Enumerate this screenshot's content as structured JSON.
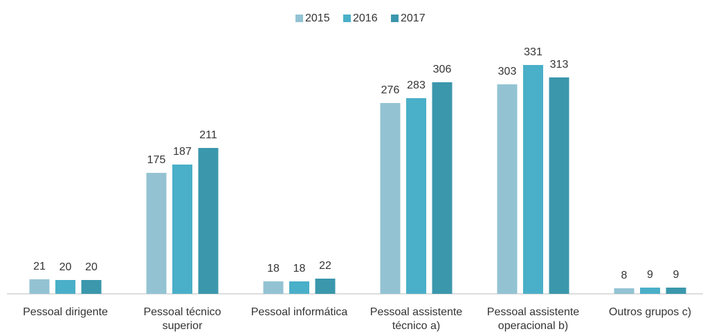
{
  "chart_data": {
    "type": "bar",
    "categories": [
      "Pessoal dirigente",
      "Pessoal técnico\nsuperior",
      "Pessoal informática",
      "Pessoal assistente\ntécnico a)",
      "Pessoal assistente\noperacional b)",
      "Outros grupos c)"
    ],
    "series": [
      {
        "name": "2015",
        "color": "#93c3d3",
        "values": [
          21,
          175,
          18,
          276,
          303,
          8
        ]
      },
      {
        "name": "2016",
        "color": "#4aafc8",
        "values": [
          20,
          187,
          18,
          283,
          331,
          9
        ]
      },
      {
        "name": "2017",
        "color": "#3b97ac",
        "values": [
          20,
          211,
          22,
          306,
          313,
          9
        ]
      }
    ],
    "legend": "top"
  }
}
